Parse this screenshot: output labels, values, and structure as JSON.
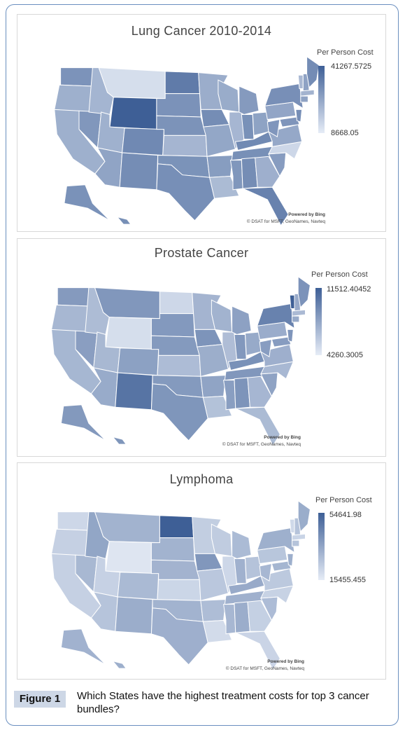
{
  "figure": {
    "label": "Figure 1",
    "caption": "Which States have the highest treatment costs for top 3 cancer bundles?"
  },
  "panels": [
    {
      "title": "Lung Cancer 2010-2014",
      "legend_title": "Per Person Cost",
      "legend_max": "41267.5725",
      "legend_min": "8668.05",
      "credit_line1": "Powered by Bing",
      "credit_line2": "© DSAT for MSFT, GeoNames, Navteq",
      "highlight_levels": {
        "wyoming": 1.0,
        "north-dakota": 0.8,
        "florida": 0.75,
        "colorado": 0.7,
        "montana": 0.1,
        "north-carolina": 0.15
      }
    },
    {
      "title": "Prostate Cancer",
      "legend_title": "Per Person Cost",
      "legend_max": "11512.40452",
      "legend_min": "4260.3005",
      "credit_line1": "Powered by Bing",
      "credit_line2": "© DSAT for MSFT, GeoNames, Navteq",
      "highlight_levels": {
        "vermont": 1.0,
        "new-mexico": 0.85,
        "new-york": 0.75,
        "montana": 0.6,
        "wyoming": 0.1,
        "north-dakota": 0.15
      }
    },
    {
      "title": "Lymphoma",
      "legend_title": "Per Person Cost",
      "legend_max": "54641.98",
      "legend_min": "15455.455",
      "credit_line1": "Powered by Bing",
      "credit_line2": "© DSAT for MSFT, GeoNames, Navteq",
      "highlight_levels": {
        "north-dakota": 1.0,
        "iowa": 0.6,
        "idaho": 0.5,
        "wyoming": 0.05,
        "washington": 0.15
      }
    }
  ],
  "colors": {
    "scale_high": "#3e5f96",
    "scale_low": "#e6ecf6",
    "border": "#6a8fbf",
    "caption_bg": "#cdd7e6"
  }
}
